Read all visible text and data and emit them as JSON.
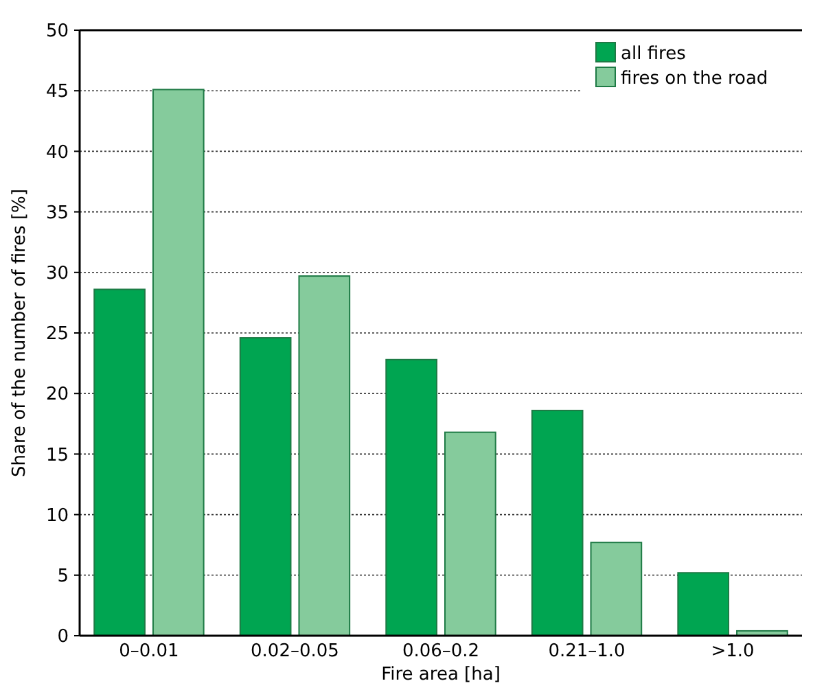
{
  "chart_data": {
    "type": "bar",
    "xlabel": "Fire area [ha]",
    "ylabel": "Share of the number of fires [%]",
    "categories": [
      "0–0.01",
      "0.02–0.05",
      "0.06–0.2",
      "0.21–1.0",
      ">1.0"
    ],
    "series": [
      {
        "name": "all fires",
        "color": "#00a551",
        "values": [
          28.6,
          24.6,
          22.8,
          18.6,
          5.2
        ]
      },
      {
        "name": "fires on the road",
        "color": "#85cb9c",
        "values": [
          45.1,
          29.7,
          16.8,
          7.7,
          0.4
        ]
      }
    ],
    "ylim": [
      0,
      50
    ],
    "yticks": [
      0,
      5,
      10,
      15,
      20,
      25,
      30,
      35,
      40,
      45,
      50
    ],
    "grid": "y",
    "legend": "top right"
  }
}
